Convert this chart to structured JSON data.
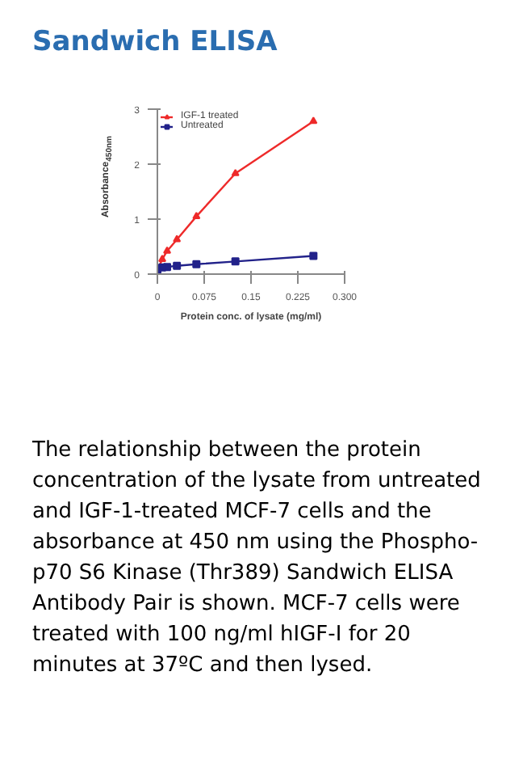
{
  "chart_data": {
    "type": "line",
    "title": "Sandwich ELISA",
    "xlabel": "Protein conc. of lysate (mg/ml)",
    "ylabel": "Absorbance$_{450nm}$",
    "x": [
      0,
      0.0078,
      0.0156,
      0.03125,
      0.0625,
      0.125,
      0.25
    ],
    "series": [
      {
        "name": "IGF-1 treated",
        "color": "#ee2a2a",
        "marker": "triangle",
        "values": [
          0.07,
          0.27,
          0.42,
          0.63,
          1.05,
          1.83,
          2.78
        ]
      },
      {
        "name": "Untreated",
        "color": "#22228a",
        "marker": "square",
        "values": [
          0.08,
          0.12,
          0.13,
          0.15,
          0.18,
          0.23,
          0.33
        ]
      }
    ],
    "xlim": [
      0,
      0.3
    ],
    "xticks": [
      0,
      0.075,
      0.15,
      0.225,
      {
        "value": 0.3,
        "label": "0.300"
      }
    ],
    "ylim": [
      0,
      3
    ],
    "yticks": [
      0,
      1,
      2,
      3
    ],
    "grid": false,
    "legend": "top left",
    "annotations": [
      "The relationship between the protein concentration of the lysate from untreated and IGF-1-treated MCF-7 cells and the absorbance at 450 nm using the Phospho-p70 S6 Kinase (Thr389) Sandwich ELISA Antibody Pair is shown. MCF-7 cells were treated with 100 ng/ml hIGF-I for 20 minutes at 37ºC and then lysed."
    ]
  }
}
